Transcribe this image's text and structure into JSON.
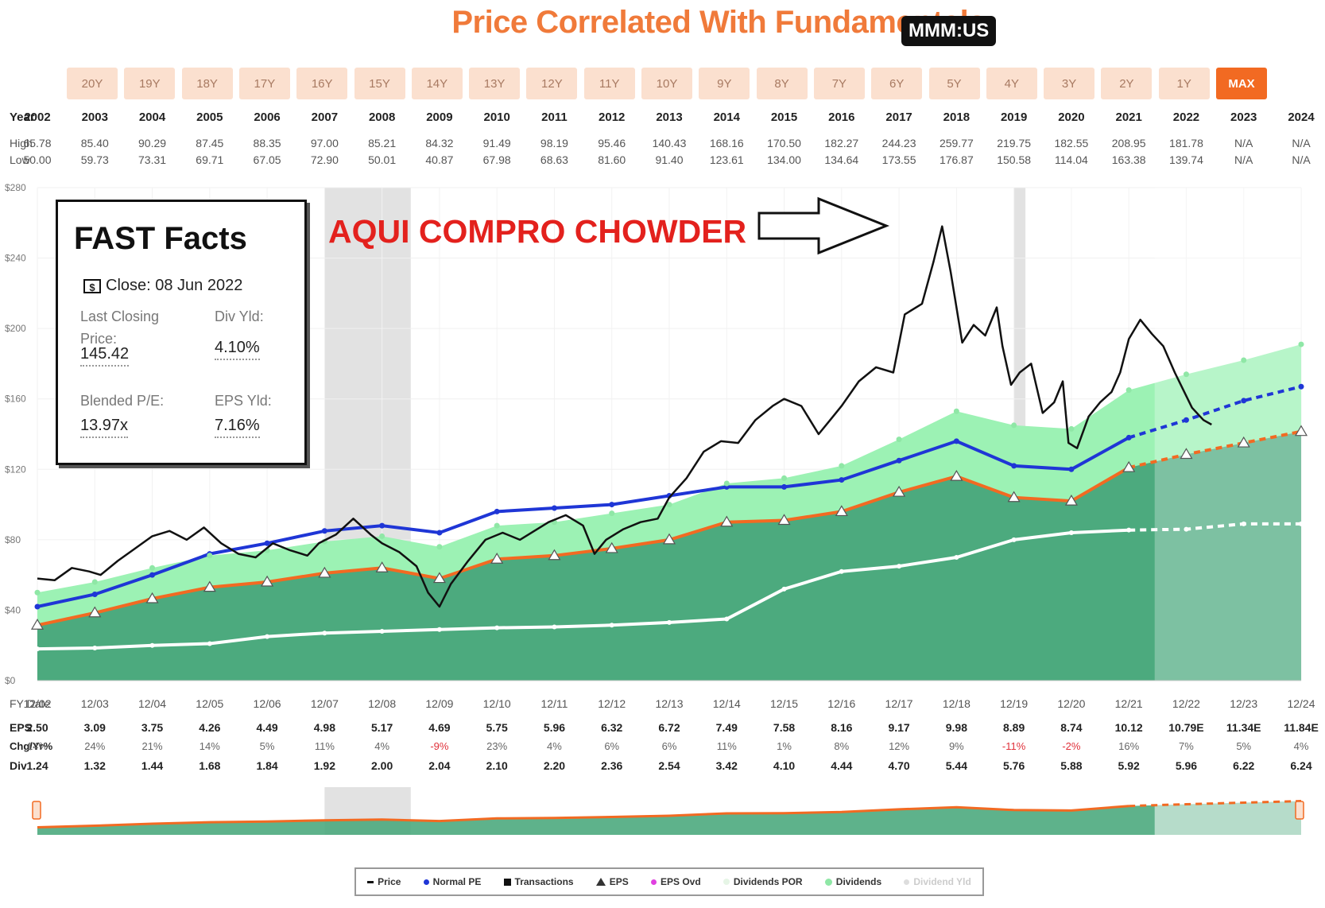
{
  "header": {
    "title": "Price Correlated With Fundamentals",
    "ticker": "MMM:US"
  },
  "ranges": [
    "20Y",
    "19Y",
    "18Y",
    "17Y",
    "16Y",
    "15Y",
    "14Y",
    "13Y",
    "12Y",
    "11Y",
    "10Y",
    "9Y",
    "8Y",
    "7Y",
    "6Y",
    "5Y",
    "4Y",
    "3Y",
    "2Y",
    "1Y",
    "MAX"
  ],
  "active_range": "MAX",
  "labels": {
    "year": "Year",
    "high": "High",
    "low": "Low",
    "fy_date": "FY Date",
    "eps": "EPS",
    "chg": "Chg/Yr%",
    "div": "Div"
  },
  "top_table": {
    "years": [
      "2002",
      "2003",
      "2004",
      "2005",
      "2006",
      "2007",
      "2008",
      "2009",
      "2010",
      "2011",
      "2012",
      "2013",
      "2014",
      "2015",
      "2016",
      "2017",
      "2018",
      "2019",
      "2020",
      "2021",
      "2022",
      "2023",
      "2024"
    ],
    "high": [
      "65.78",
      "85.40",
      "90.29",
      "87.45",
      "88.35",
      "97.00",
      "85.21",
      "84.32",
      "91.49",
      "98.19",
      "95.46",
      "140.43",
      "168.16",
      "170.50",
      "182.27",
      "244.23",
      "259.77",
      "219.75",
      "182.55",
      "208.95",
      "181.78",
      "N/A",
      "N/A"
    ],
    "low": [
      "50.00",
      "59.73",
      "73.31",
      "69.71",
      "67.05",
      "72.90",
      "50.01",
      "40.87",
      "67.98",
      "68.63",
      "81.60",
      "91.40",
      "123.61",
      "134.00",
      "134.64",
      "173.55",
      "176.87",
      "150.58",
      "114.04",
      "163.38",
      "139.74",
      "N/A",
      "N/A"
    ]
  },
  "bottom_table": {
    "fy_dates": [
      "12/02",
      "12/03",
      "12/04",
      "12/05",
      "12/06",
      "12/07",
      "12/08",
      "12/09",
      "12/10",
      "12/11",
      "12/12",
      "12/13",
      "12/14",
      "12/15",
      "12/16",
      "12/17",
      "12/18",
      "12/19",
      "12/20",
      "12/21",
      "12/22",
      "12/23",
      "12/24"
    ],
    "eps": [
      "2.50",
      "3.09",
      "3.75",
      "4.26",
      "4.49",
      "4.98",
      "5.17",
      "4.69",
      "5.75",
      "5.96",
      "6.32",
      "6.72",
      "7.49",
      "7.58",
      "8.16",
      "9.17",
      "9.98",
      "8.89",
      "8.74",
      "10.12",
      "10.79E",
      "11.34E",
      "11.84E"
    ],
    "chg": [
      "14%",
      "24%",
      "21%",
      "14%",
      "5%",
      "11%",
      "4%",
      "-9%",
      "23%",
      "4%",
      "6%",
      "6%",
      "11%",
      "1%",
      "8%",
      "12%",
      "9%",
      "-11%",
      "-2%",
      "16%",
      "7%",
      "5%",
      "4%"
    ],
    "div": [
      "1.24",
      "1.32",
      "1.44",
      "1.68",
      "1.84",
      "1.92",
      "2.00",
      "2.04",
      "2.10",
      "2.20",
      "2.36",
      "2.54",
      "3.42",
      "4.10",
      "4.44",
      "4.70",
      "5.44",
      "5.76",
      "5.88",
      "5.92",
      "5.96",
      "6.22",
      "6.24"
    ]
  },
  "fast_facts": {
    "title": "FAST Facts",
    "close": "Close: 08 Jun 2022",
    "last_closing_label": "Last Closing Price:",
    "last_closing_value": "145.42",
    "div_yld_label": "Div Yld:",
    "div_yld_value": "4.10%",
    "blended_pe_label": "Blended P/E:",
    "blended_pe_value": "13.97x",
    "eps_yld_label": "EPS Yld:",
    "eps_yld_value": "7.16%"
  },
  "annotation": {
    "text": "AQUI COMPRO CHOWDER"
  },
  "legend": [
    "Price",
    "Normal PE",
    "Transactions",
    "EPS",
    "EPS Ovd",
    "Dividends POR",
    "Dividends",
    "Dividend Yld"
  ],
  "colors": {
    "orange": "#f26a22",
    "eps_area": "#4caa7e",
    "dividend_area": "#9cf2b4",
    "normal_pe": "#1f36d6",
    "price": "#111111",
    "dividend_line": "#ffffff",
    "recession": "#e2e2e2"
  },
  "chart_data": {
    "type": "line",
    "title": "Price Correlated With Fundamentals",
    "y_ticks": [
      "$0",
      "$40",
      "$80",
      "$120",
      "$160",
      "$200",
      "$240",
      "$280"
    ],
    "ylim": [
      0,
      280
    ],
    "x_years": [
      2002,
      2003,
      2004,
      2005,
      2006,
      2007,
      2008,
      2009,
      2010,
      2011,
      2012,
      2013,
      2014,
      2015,
      2016,
      2017,
      2018,
      2019,
      2020,
      2021,
      2022,
      2023,
      2024
    ],
    "recessions": [
      [
        2007.0,
        2008.5
      ],
      [
        2019.0,
        2019.2
      ]
    ],
    "forecast_start": 2021.45,
    "series": [
      {
        "name": "EPS",
        "values": [
          31.5,
          38.5,
          46.5,
          53,
          56,
          61,
          64,
          58,
          69,
          71,
          75,
          80,
          90,
          91,
          96,
          107,
          116,
          104,
          102,
          121,
          128.5,
          135,
          141.5
        ]
      },
      {
        "name": "Dividends",
        "values": [
          50,
          56,
          64,
          71,
          74,
          79,
          82,
          76,
          88,
          90,
          95,
          100,
          112,
          115,
          122,
          137,
          153,
          145,
          143,
          165,
          174,
          182,
          191
        ]
      },
      {
        "name": "Normal PE",
        "values": [
          42,
          49,
          60,
          72,
          78,
          85,
          88,
          84,
          96,
          98,
          100,
          105,
          110,
          110,
          114,
          125,
          136,
          122,
          120,
          138,
          148,
          159,
          167
        ]
      },
      {
        "name": "Dividend Line",
        "values": [
          18,
          18.5,
          20,
          21,
          25,
          27,
          28,
          29,
          30,
          30.5,
          31.5,
          33,
          35,
          52,
          62,
          65,
          70,
          80,
          84,
          85.5,
          86,
          89,
          89
        ]
      }
    ],
    "price": [
      [
        2002.0,
        58
      ],
      [
        2002.3,
        57
      ],
      [
        2002.6,
        64
      ],
      [
        2002.9,
        62
      ],
      [
        2003.1,
        60
      ],
      [
        2003.4,
        68
      ],
      [
        2003.7,
        75
      ],
      [
        2004.0,
        82
      ],
      [
        2004.3,
        85
      ],
      [
        2004.6,
        80
      ],
      [
        2004.9,
        87
      ],
      [
        2005.2,
        78
      ],
      [
        2005.5,
        72
      ],
      [
        2005.8,
        70
      ],
      [
        2006.1,
        78
      ],
      [
        2006.4,
        74
      ],
      [
        2006.7,
        71
      ],
      [
        2006.9,
        78
      ],
      [
        2007.2,
        83
      ],
      [
        2007.5,
        92
      ],
      [
        2007.8,
        83
      ],
      [
        2008.0,
        78
      ],
      [
        2008.3,
        73
      ],
      [
        2008.6,
        65
      ],
      [
        2008.8,
        50
      ],
      [
        2009.0,
        42
      ],
      [
        2009.2,
        55
      ],
      [
        2009.5,
        68
      ],
      [
        2009.8,
        80
      ],
      [
        2010.1,
        84
      ],
      [
        2010.4,
        80
      ],
      [
        2010.7,
        86
      ],
      [
        2010.9,
        90
      ],
      [
        2011.2,
        94
      ],
      [
        2011.5,
        88
      ],
      [
        2011.7,
        72
      ],
      [
        2011.9,
        80
      ],
      [
        2012.2,
        86
      ],
      [
        2012.5,
        90
      ],
      [
        2012.8,
        92
      ],
      [
        2013.0,
        104
      ],
      [
        2013.3,
        115
      ],
      [
        2013.6,
        130
      ],
      [
        2013.9,
        136
      ],
      [
        2014.2,
        135
      ],
      [
        2014.5,
        148
      ],
      [
        2014.8,
        156
      ],
      [
        2015.0,
        160
      ],
      [
        2015.3,
        156
      ],
      [
        2015.6,
        140
      ],
      [
        2015.8,
        148
      ],
      [
        2016.0,
        156
      ],
      [
        2016.3,
        170
      ],
      [
        2016.6,
        178
      ],
      [
        2016.9,
        175
      ],
      [
        2017.1,
        208
      ],
      [
        2017.4,
        214
      ],
      [
        2017.6,
        238
      ],
      [
        2017.75,
        258
      ],
      [
        2017.9,
        232
      ],
      [
        2018.1,
        192
      ],
      [
        2018.3,
        202
      ],
      [
        2018.5,
        196
      ],
      [
        2018.7,
        212
      ],
      [
        2018.8,
        190
      ],
      [
        2018.95,
        168
      ],
      [
        2019.1,
        175
      ],
      [
        2019.3,
        180
      ],
      [
        2019.5,
        152
      ],
      [
        2019.7,
        158
      ],
      [
        2019.85,
        170
      ],
      [
        2019.95,
        135
      ],
      [
        2020.1,
        132
      ],
      [
        2020.3,
        150
      ],
      [
        2020.5,
        158
      ],
      [
        2020.7,
        164
      ],
      [
        2020.85,
        175
      ],
      [
        2021.0,
        194
      ],
      [
        2021.2,
        205
      ],
      [
        2021.4,
        197
      ],
      [
        2021.6,
        190
      ],
      [
        2021.8,
        175
      ],
      [
        2021.95,
        165
      ],
      [
        2022.1,
        155
      ],
      [
        2022.3,
        148
      ],
      [
        2022.44,
        145.42
      ]
    ]
  }
}
